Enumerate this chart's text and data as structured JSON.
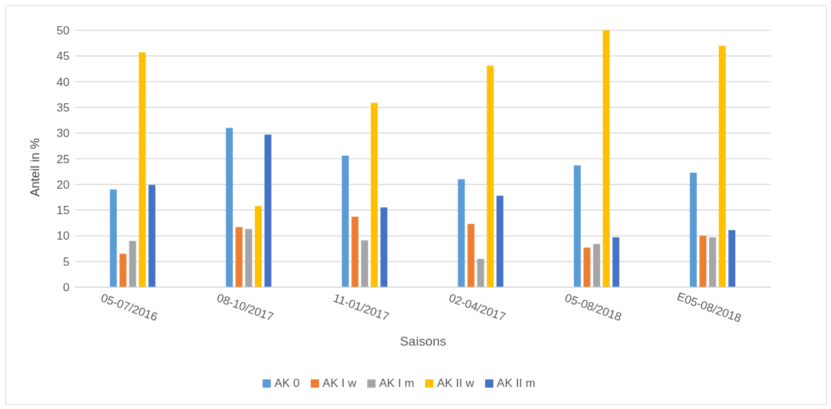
{
  "chart_data": {
    "type": "bar",
    "xlabel": "Saisons",
    "ylabel": "Anteil in %",
    "categories": [
      "05-07/2016",
      "08-10/2017",
      "11-01/2017",
      "02-04/2017",
      "05-08/2018",
      "E05-08/2018"
    ],
    "series": [
      {
        "name": "AK 0",
        "color": "#5b9bd5",
        "values": [
          19,
          31,
          25.6,
          21,
          23.7,
          22.3
        ]
      },
      {
        "name": "AK I w",
        "color": "#ed7d31",
        "values": [
          6.5,
          11.7,
          13.7,
          12.3,
          7.7,
          10
        ]
      },
      {
        "name": "AK I m",
        "color": "#a5a5a5",
        "values": [
          9,
          11.3,
          9.1,
          5.5,
          8.4,
          9.7
        ]
      },
      {
        "name": "AK II w",
        "color": "#ffc000",
        "values": [
          45.7,
          15.8,
          35.9,
          43.1,
          50,
          47
        ]
      },
      {
        "name": "AK II m",
        "color": "#4472c4",
        "values": [
          19.9,
          29.7,
          15.5,
          17.8,
          9.7,
          11.1
        ]
      }
    ],
    "ylim": [
      0,
      50
    ],
    "yticks": [
      0,
      5,
      10,
      15,
      20,
      25,
      30,
      35,
      40,
      45,
      50
    ],
    "grid": "y",
    "legend": "bottom"
  }
}
